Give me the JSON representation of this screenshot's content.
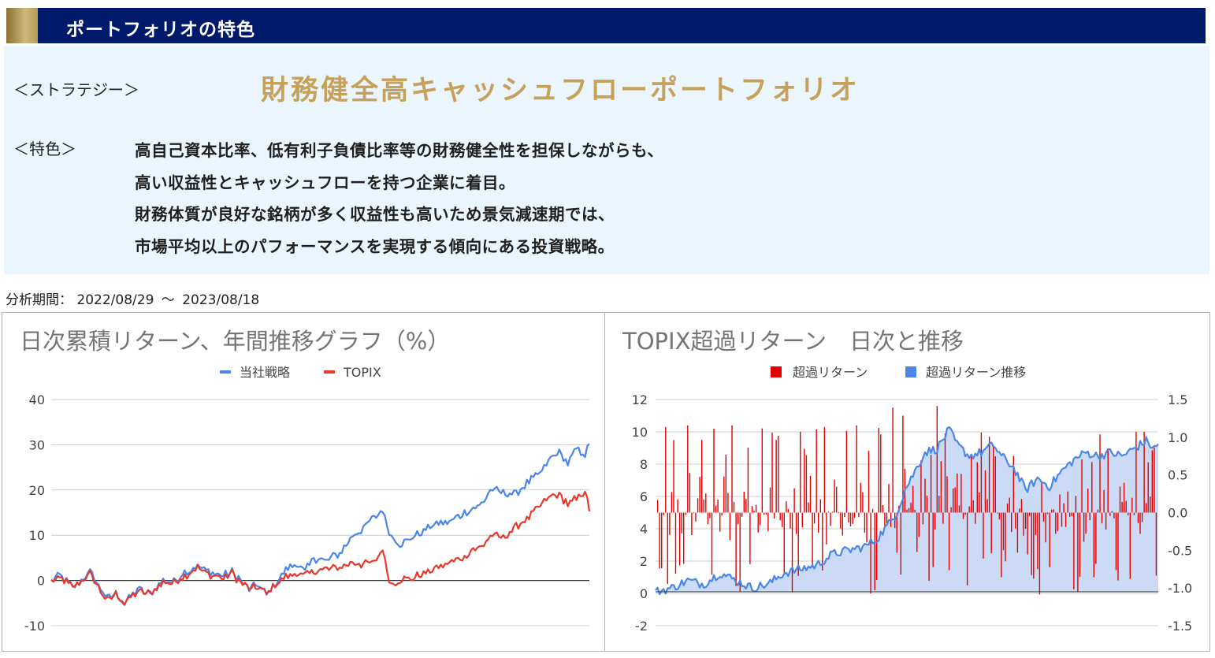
{
  "header": {
    "title": "ポートフォリオの特色"
  },
  "strategy": {
    "label": "＜ストラテジー＞",
    "name": "財務健全高キャッシュフローポートフォリオ"
  },
  "features": {
    "label": "＜特色＞",
    "lines": [
      "高自己資本比率、低有利子負債比率等の財務健全性を担保しながらも、",
      "高い収益性とキャッシュフローを持つ企業に着目。",
      "財務体質が良好な銘柄が多く収益性も高いため景気減速期では、",
      "市場平均以上のパフォーマンスを実現する傾向にある投資戦略。"
    ]
  },
  "period": {
    "label": "分析期間：",
    "start": "2022/08/29",
    "separator": "～",
    "end": "2023/08/18"
  },
  "colors": {
    "header_bg": "#001a6b",
    "gold": "#c5a15a",
    "panel_bg": "#ebf5fe",
    "blue": "#4a86e8",
    "red": "#e8382b",
    "bar_red": "#e00000",
    "area_fill": "#c8d9f6"
  },
  "chart_data": [
    {
      "type": "line",
      "title": "日次累積リターン、年間推移グラフ（%）",
      "legend_position": "top",
      "ylim": [
        -10,
        40
      ],
      "yticks": [
        "40",
        "30",
        "20",
        "10",
        "0",
        "-10"
      ],
      "grid": true,
      "x_label_count": 250,
      "series": [
        {
          "name": "当社戦略",
          "color": "#4a86e8",
          "keypoints": [
            [
              0,
              0
            ],
            [
              4,
              1
            ],
            [
              10,
              -1.5
            ],
            [
              16,
              1
            ],
            [
              18,
              2
            ],
            [
              22,
              -1
            ],
            [
              26,
              -4
            ],
            [
              30,
              -3
            ],
            [
              34,
              -5
            ],
            [
              40,
              -2
            ],
            [
              46,
              -3
            ],
            [
              52,
              0
            ],
            [
              56,
              -0.5
            ],
            [
              62,
              2
            ],
            [
              68,
              3
            ],
            [
              72,
              2
            ],
            [
              76,
              1.5
            ],
            [
              80,
              1
            ],
            [
              84,
              2
            ],
            [
              88,
              0
            ],
            [
              92,
              -2
            ],
            [
              96,
              -1
            ],
            [
              100,
              -3
            ],
            [
              104,
              -1
            ],
            [
              108,
              2
            ],
            [
              114,
              4
            ],
            [
              118,
              2
            ],
            [
              122,
              5
            ],
            [
              128,
              4.5
            ],
            [
              134,
              6
            ],
            [
              140,
              10
            ],
            [
              146,
              12
            ],
            [
              150,
              14
            ],
            [
              154,
              15.5
            ],
            [
              156,
              12
            ],
            [
              158,
              10
            ],
            [
              162,
              8
            ],
            [
              166,
              9
            ],
            [
              170,
              10
            ],
            [
              176,
              12
            ],
            [
              180,
              12.5
            ],
            [
              186,
              13
            ],
            [
              192,
              15
            ],
            [
              196,
              16
            ],
            [
              200,
              17
            ],
            [
              204,
              20
            ],
            [
              210,
              19.5
            ],
            [
              216,
              19
            ],
            [
              222,
              22
            ],
            [
              228,
              24
            ],
            [
              232,
              27
            ],
            [
              236,
              28.5
            ],
            [
              240,
              26
            ],
            [
              244,
              29
            ],
            [
              248,
              28
            ],
            [
              250,
              30
            ]
          ]
        },
        {
          "name": "TOPIX",
          "color": "#e8382b",
          "keypoints": [
            [
              0,
              0
            ],
            [
              4,
              0.5
            ],
            [
              10,
              -1.5
            ],
            [
              16,
              0.5
            ],
            [
              18,
              1.5
            ],
            [
              22,
              -1.5
            ],
            [
              26,
              -4.5
            ],
            [
              30,
              -3
            ],
            [
              34,
              -5
            ],
            [
              40,
              -2.5
            ],
            [
              46,
              -3
            ],
            [
              52,
              -0.5
            ],
            [
              56,
              -0.5
            ],
            [
              62,
              1
            ],
            [
              68,
              3
            ],
            [
              72,
              1.5
            ],
            [
              76,
              1
            ],
            [
              80,
              0.5
            ],
            [
              84,
              1.5
            ],
            [
              88,
              -0.5
            ],
            [
              92,
              -2
            ],
            [
              96,
              -1.5
            ],
            [
              100,
              -3
            ],
            [
              104,
              -1
            ],
            [
              108,
              0.5
            ],
            [
              114,
              1.5
            ],
            [
              118,
              1
            ],
            [
              122,
              2
            ],
            [
              128,
              2.5
            ],
            [
              134,
              3
            ],
            [
              140,
              4
            ],
            [
              146,
              3.5
            ],
            [
              150,
              4
            ],
            [
              154,
              7
            ],
            [
              156,
              2
            ],
            [
              158,
              -1
            ],
            [
              162,
              0
            ],
            [
              166,
              0.5
            ],
            [
              170,
              1
            ],
            [
              176,
              2
            ],
            [
              180,
              3
            ],
            [
              186,
              4
            ],
            [
              192,
              5
            ],
            [
              196,
              7
            ],
            [
              200,
              7.5
            ],
            [
              204,
              10
            ],
            [
              210,
              9.5
            ],
            [
              216,
              12
            ],
            [
              222,
              14
            ],
            [
              228,
              17
            ],
            [
              232,
              18.5
            ],
            [
              236,
              19
            ],
            [
              240,
              17
            ],
            [
              244,
              18
            ],
            [
              248,
              20
            ],
            [
              250,
              15
            ]
          ]
        }
      ]
    },
    {
      "type": "bar",
      "title": "TOPIX超過リターン　日次と推移",
      "legend_position": "top",
      "ylim_left": [
        -2,
        12
      ],
      "ylim_right": [
        -1.5,
        1.5
      ],
      "yticks_left": [
        "12",
        "10",
        "8",
        "6",
        "4",
        "2",
        "0",
        "-2"
      ],
      "yticks_right": [
        "1.5",
        "1.0",
        "0.5",
        "0.0",
        "-0.5",
        "-1.0",
        "-1.5"
      ],
      "grid": true,
      "series": [
        {
          "name": "超過リターン",
          "color": "#e00000",
          "axis": "left",
          "kind": "bar",
          "baseline": 5,
          "spikes": [
            [
              5,
              10.3
            ],
            [
              9,
              9.5
            ],
            [
              16,
              10.4
            ],
            [
              23,
              9.5
            ],
            [
              38,
              10.4
            ],
            [
              60,
              9.5
            ],
            [
              72,
              10
            ],
            [
              84,
              10.3
            ],
            [
              100,
              10.4
            ],
            [
              118,
              11.5
            ],
            [
              123,
              11
            ],
            [
              140,
              11.6
            ],
            [
              155,
              0.5
            ],
            [
              166,
              9.7
            ],
            [
              172,
              1
            ],
            [
              190,
              1.5
            ],
            [
              218,
              1
            ],
            [
              230,
              0.8
            ],
            [
              243,
              10
            ]
          ]
        },
        {
          "name": "超過リターン推移",
          "color": "#4a86e8",
          "axis": "right",
          "kind": "area",
          "keypoints": [
            [
              0,
              -1.05
            ],
            [
              8,
              -1.0
            ],
            [
              16,
              -0.9
            ],
            [
              24,
              -0.95
            ],
            [
              32,
              -0.8
            ],
            [
              40,
              -0.9
            ],
            [
              48,
              -1.0
            ],
            [
              56,
              -0.95
            ],
            [
              64,
              -0.8
            ],
            [
              72,
              -0.75
            ],
            [
              80,
              -0.7
            ],
            [
              88,
              -0.55
            ],
            [
              96,
              -0.5
            ],
            [
              104,
              -0.45
            ],
            [
              110,
              -0.35
            ],
            [
              116,
              -0.15
            ],
            [
              120,
              0.0
            ],
            [
              124,
              0.3
            ],
            [
              128,
              0.5
            ],
            [
              134,
              0.8
            ],
            [
              140,
              0.85
            ],
            [
              146,
              1.1
            ],
            [
              150,
              0.9
            ],
            [
              156,
              0.75
            ],
            [
              162,
              0.8
            ],
            [
              168,
              0.9
            ],
            [
              172,
              0.75
            ],
            [
              178,
              0.6
            ],
            [
              184,
              0.3
            ],
            [
              190,
              0.45
            ],
            [
              196,
              0.35
            ],
            [
              202,
              0.55
            ],
            [
              208,
              0.7
            ],
            [
              214,
              0.8
            ],
            [
              220,
              0.75
            ],
            [
              226,
              0.8
            ],
            [
              232,
              0.75
            ],
            [
              238,
              0.85
            ],
            [
              244,
              0.95
            ],
            [
              248,
              0.85
            ],
            [
              250,
              0.9
            ]
          ]
        }
      ]
    }
  ]
}
